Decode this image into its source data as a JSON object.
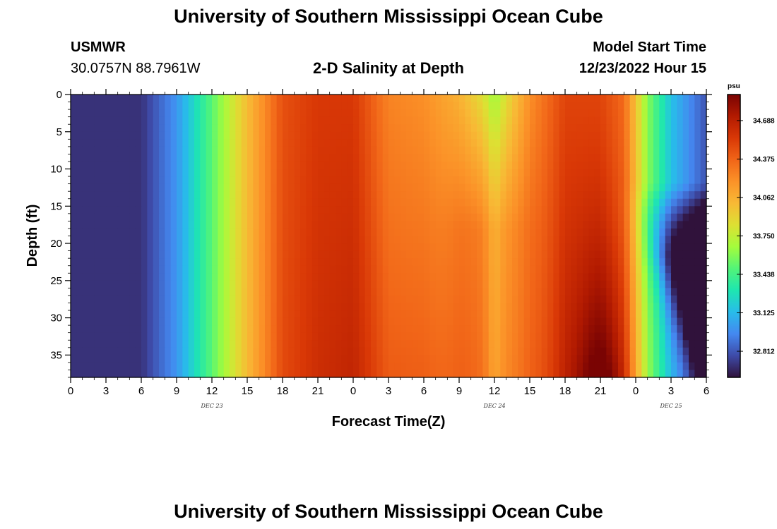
{
  "header": {
    "title": "University of Southern Mississippi Ocean Cube",
    "station": "USMWR",
    "coords": "30.0757N  88.7961W",
    "subtitle": "2-D Salinity at Depth",
    "model_start_label": "Model Start Time",
    "model_start_value": "12/23/2022 Hour 15",
    "footer_title": "University of Southern Mississippi Ocean Cube"
  },
  "colors": {
    "ramp": [
      "#30123b",
      "#3e4ba8",
      "#4488f0",
      "#28bcea",
      "#1ee6b0",
      "#52f478",
      "#a4fc3c",
      "#dde033",
      "#f8b935",
      "#fb9228",
      "#f16518",
      "#d93806",
      "#b21a01",
      "#7a0403"
    ]
  },
  "chart_data": {
    "type": "heatmap",
    "title": "2-D Salinity at Depth",
    "xlabel": "Forecast Time(Z)",
    "ylabel": "Depth (ft)",
    "x_tick_labels": [
      "0",
      "3",
      "6",
      "9",
      "12",
      "15",
      "18",
      "21",
      "0",
      "3",
      "6",
      "9",
      "12",
      "15",
      "18",
      "21",
      "0",
      "3",
      "6"
    ],
    "x_hours": [
      0,
      54
    ],
    "date_labels": [
      {
        "text": "DEC 23",
        "hour": 12
      },
      {
        "text": "DEC 24",
        "hour": 36
      },
      {
        "text": "DEC 25",
        "hour": 51
      }
    ],
    "y_ticks": [
      0,
      5,
      10,
      15,
      20,
      25,
      30,
      35
    ],
    "ylim": [
      0,
      38
    ],
    "colorbar": {
      "unit": "psu",
      "min": 32.6,
      "max": 34.9,
      "ticks": [
        32.812,
        33.125,
        33.438,
        33.75,
        34.062,
        34.375,
        34.688
      ],
      "tick_labels": [
        "32.812",
        "33.125",
        "33.438",
        "33.750",
        "34.062",
        "34.375",
        "34.688"
      ]
    },
    "surface_profile": [
      [
        0,
        32.7
      ],
      [
        6,
        32.7
      ],
      [
        9,
        33.0
      ],
      [
        12,
        33.5
      ],
      [
        15,
        34.0
      ],
      [
        18,
        34.45
      ],
      [
        21,
        34.55
      ],
      [
        24,
        34.55
      ],
      [
        27,
        34.25
      ],
      [
        30,
        34.2
      ],
      [
        33,
        34.05
      ],
      [
        35,
        33.85
      ],
      [
        36,
        33.65
      ],
      [
        37,
        33.85
      ],
      [
        39,
        34.2
      ],
      [
        42,
        34.5
      ],
      [
        45,
        34.5
      ],
      [
        47,
        34.35
      ],
      [
        49,
        33.6
      ],
      [
        51,
        33.15
      ],
      [
        54,
        32.8
      ]
    ],
    "notes": "Near-surface band of freshening near hour 36 (12Z Dec 24); saltier water (about 34.9 psu) near bottom around 21Z Dec 24; fresher water below 15 ft after 0Z Dec 25."
  }
}
